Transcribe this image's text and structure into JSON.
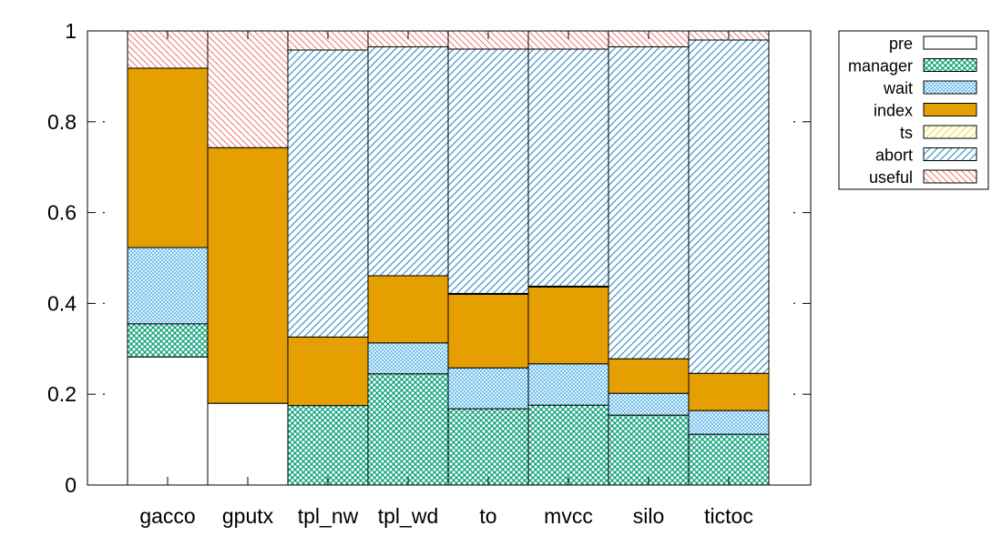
{
  "chart_data": {
    "type": "bar",
    "stacked": true,
    "categories": [
      "gacco",
      "gputx",
      "tpl_nw",
      "tpl_wd",
      "to",
      "mvcc",
      "silo",
      "tictoc"
    ],
    "ylim": [
      0,
      1
    ],
    "yticks": [
      "0",
      "0.2",
      "0.4",
      "0.6",
      "0.8",
      "1"
    ],
    "ytick_values": [
      0,
      0.2,
      0.4,
      0.6,
      0.8,
      1
    ],
    "grid": false,
    "legend_position": "top-right outside",
    "series": [
      {
        "name": "pre",
        "color": "#ffffff",
        "pattern": "solid-white",
        "values": [
          0.282,
          0.18,
          0,
          0,
          0,
          0,
          0,
          0
        ]
      },
      {
        "name": "manager",
        "color": "#009e73",
        "pattern": "crosshatch",
        "values": [
          0.073,
          0,
          0.175,
          0.245,
          0.168,
          0.176,
          0.154,
          0.112
        ]
      },
      {
        "name": "wait",
        "color": "#56b4e9",
        "pattern": "fine-crosshatch",
        "values": [
          0.168,
          0,
          0,
          0.068,
          0.09,
          0.091,
          0.048,
          0.052
        ]
      },
      {
        "name": "index",
        "color": "#e69f00",
        "pattern": "solid",
        "values": [
          0.395,
          0.563,
          0.151,
          0.148,
          0.162,
          0.169,
          0.076,
          0.082
        ]
      },
      {
        "name": "ts",
        "color": "#f0e442",
        "pattern": "diagonal",
        "values": [
          0,
          0,
          0,
          0,
          0.002,
          0.002,
          0,
          0
        ]
      },
      {
        "name": "abort",
        "color": "#0072b2",
        "pattern": "diagonal",
        "values": [
          0,
          0,
          0.632,
          0.504,
          0.538,
          0.522,
          0.687,
          0.734
        ]
      },
      {
        "name": "useful",
        "color": "#e51e10",
        "pattern": "diagonal-back",
        "values": [
          0.082,
          0.257,
          0.042,
          0.035,
          0.04,
          0.04,
          0.035,
          0.02
        ]
      }
    ]
  }
}
